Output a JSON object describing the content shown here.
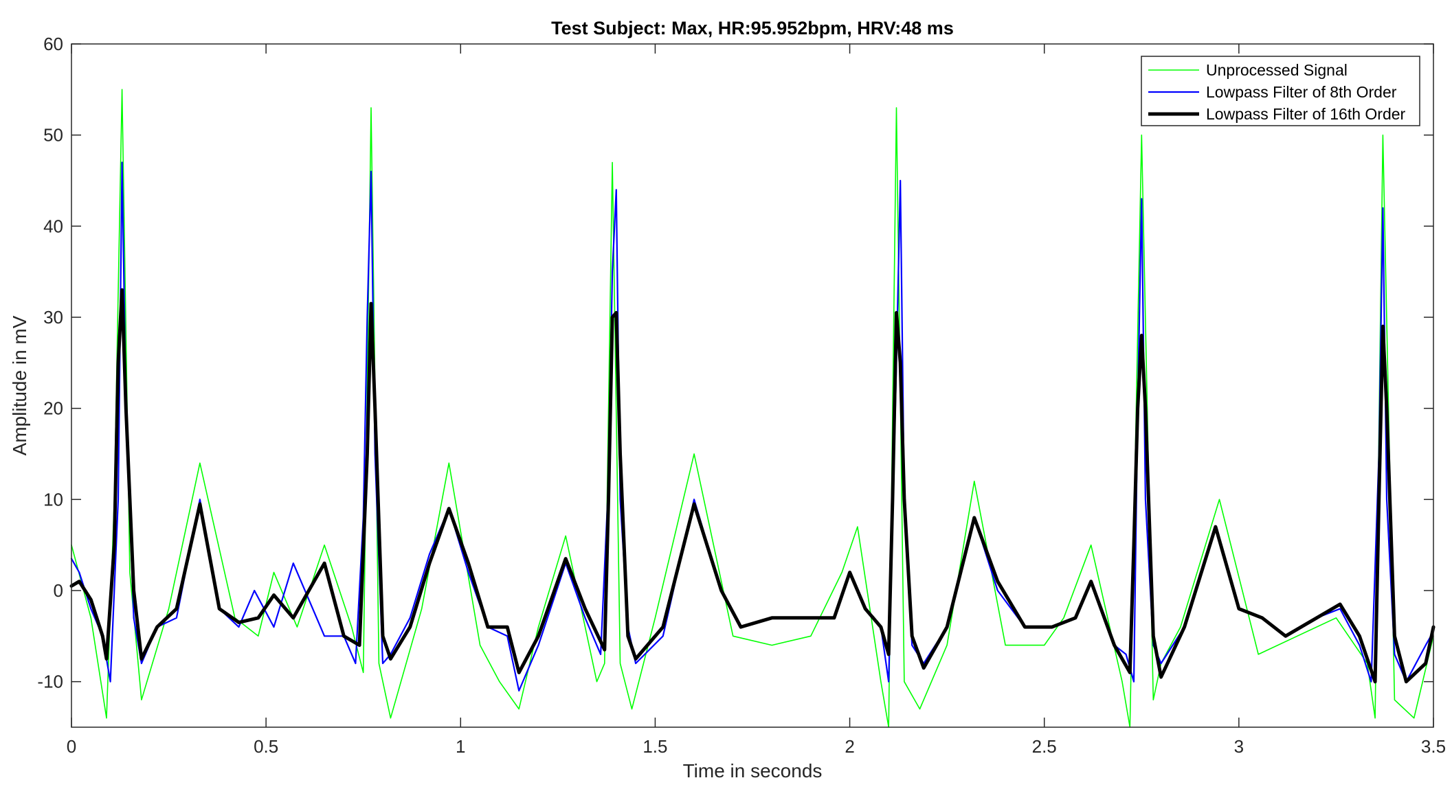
{
  "chart_data": {
    "type": "line",
    "title": "Test Subject: Max, HR:95.952bpm, HRV:48 ms",
    "xlabel": "Time in seconds",
    "ylabel": "Amplitude in mV",
    "xlim": [
      0,
      3.5
    ],
    "ylim": [
      -15,
      60
    ],
    "x_ticks": [
      0,
      0.5,
      1,
      1.5,
      2,
      2.5,
      3,
      3.5
    ],
    "x_tick_labels": [
      "0",
      "0.5",
      "1",
      "1.5",
      "2",
      "2.5",
      "3",
      "3.5"
    ],
    "y_ticks": [
      -10,
      0,
      10,
      20,
      30,
      40,
      50,
      60
    ],
    "y_tick_labels": [
      "-10",
      "0",
      "10",
      "20",
      "30",
      "40",
      "50",
      "60"
    ],
    "grid": false,
    "legend_position": "top-right",
    "series": [
      {
        "name": "Unprocessed Signal",
        "color": "#00ff00",
        "x": [
          0.0,
          0.05,
          0.09,
          0.11,
          0.13,
          0.15,
          0.18,
          0.25,
          0.33,
          0.42,
          0.48,
          0.52,
          0.58,
          0.65,
          0.72,
          0.75,
          0.77,
          0.79,
          0.82,
          0.9,
          0.97,
          1.05,
          1.1,
          1.15,
          1.2,
          1.27,
          1.35,
          1.37,
          1.39,
          1.41,
          1.44,
          1.5,
          1.6,
          1.7,
          1.8,
          1.9,
          1.98,
          2.02,
          2.08,
          2.1,
          2.12,
          2.14,
          2.18,
          2.25,
          2.32,
          2.4,
          2.5,
          2.55,
          2.62,
          2.7,
          2.72,
          2.75,
          2.78,
          2.8,
          2.85,
          2.95,
          3.05,
          3.15,
          3.25,
          3.33,
          3.35,
          3.37,
          3.4,
          3.45,
          3.5
        ],
        "y": [
          5,
          -3,
          -14,
          10,
          55,
          2,
          -12,
          -2,
          14,
          -3,
          -5,
          2,
          -4,
          5,
          -4,
          -9,
          53,
          -8,
          -14,
          -2,
          14,
          -6,
          -10,
          -13,
          -4,
          6,
          -10,
          -8,
          47,
          -8,
          -13,
          -3,
          15,
          -5,
          -6,
          -5,
          2,
          7,
          -10,
          -15,
          53,
          -10,
          -13,
          -6,
          12,
          -6,
          -6,
          -3,
          5,
          -10,
          -15,
          50,
          -12,
          -8,
          -4,
          10,
          -7,
          -5,
          -3,
          -8,
          -14,
          50,
          -12,
          -14,
          -5
        ]
      },
      {
        "name": "Lowpass Filter of 8th Order",
        "color": "#0000ff",
        "x": [
          0.0,
          0.02,
          0.05,
          0.08,
          0.1,
          0.12,
          0.13,
          0.14,
          0.16,
          0.18,
          0.22,
          0.27,
          0.33,
          0.38,
          0.43,
          0.47,
          0.52,
          0.57,
          0.65,
          0.7,
          0.73,
          0.75,
          0.76,
          0.77,
          0.78,
          0.8,
          0.82,
          0.87,
          0.92,
          0.97,
          1.02,
          1.07,
          1.12,
          1.15,
          1.2,
          1.27,
          1.32,
          1.36,
          1.38,
          1.39,
          1.4,
          1.41,
          1.43,
          1.45,
          1.52,
          1.6,
          1.67,
          1.72,
          1.8,
          1.88,
          1.96,
          2.0,
          2.04,
          2.08,
          2.1,
          2.12,
          2.13,
          2.14,
          2.16,
          2.19,
          2.25,
          2.32,
          2.38,
          2.45,
          2.52,
          2.58,
          2.62,
          2.68,
          2.71,
          2.73,
          2.74,
          2.75,
          2.76,
          2.78,
          2.8,
          2.86,
          2.94,
          3.0,
          3.06,
          3.12,
          3.2,
          3.26,
          3.31,
          3.34,
          3.36,
          3.37,
          3.38,
          3.4,
          3.43,
          3.48,
          3.5
        ],
        "y": [
          3.5,
          2,
          -2,
          -5,
          -10,
          10,
          47,
          20,
          -3,
          -8,
          -4,
          -3,
          10,
          -2,
          -4,
          0,
          -4,
          3,
          -5,
          -5,
          -8,
          8,
          30,
          46,
          15,
          -8,
          -7,
          -3,
          4,
          9,
          2,
          -4,
          -5,
          -11,
          -6,
          3,
          -3,
          -7,
          12,
          35,
          44,
          10,
          -4,
          -8,
          -5,
          10,
          0,
          -4,
          -3,
          -3,
          -3,
          2,
          -2,
          -4,
          -10,
          25,
          45,
          10,
          -6,
          -8,
          -4,
          8,
          0,
          -4,
          -4,
          -3,
          1,
          -6,
          -7,
          -10,
          20,
          43,
          10,
          -6,
          -8,
          -4,
          7,
          -2,
          -3,
          -5,
          -3,
          -2,
          -6,
          -10,
          15,
          42,
          10,
          -7,
          -10,
          -6,
          -4.5
        ]
      },
      {
        "name": "Lowpass Filter of 16th Order",
        "color": "#000000",
        "x": [
          0.0,
          0.02,
          0.05,
          0.08,
          0.09,
          0.11,
          0.12,
          0.13,
          0.14,
          0.16,
          0.18,
          0.22,
          0.27,
          0.33,
          0.38,
          0.43,
          0.48,
          0.52,
          0.57,
          0.65,
          0.7,
          0.74,
          0.76,
          0.77,
          0.78,
          0.8,
          0.82,
          0.87,
          0.92,
          0.97,
          1.02,
          1.07,
          1.12,
          1.15,
          1.2,
          1.27,
          1.32,
          1.37,
          1.38,
          1.39,
          1.4,
          1.41,
          1.43,
          1.45,
          1.52,
          1.6,
          1.67,
          1.72,
          1.8,
          1.88,
          1.96,
          2.0,
          2.04,
          2.08,
          2.1,
          2.11,
          2.12,
          2.13,
          2.14,
          2.16,
          2.19,
          2.25,
          2.32,
          2.38,
          2.45,
          2.52,
          2.58,
          2.62,
          2.68,
          2.72,
          2.73,
          2.74,
          2.75,
          2.76,
          2.78,
          2.8,
          2.86,
          2.94,
          3.0,
          3.06,
          3.12,
          3.2,
          3.26,
          3.31,
          3.35,
          3.36,
          3.37,
          3.38,
          3.4,
          3.43,
          3.48,
          3.5
        ],
        "y": [
          0.5,
          1,
          -1,
          -5,
          -7.5,
          5,
          25,
          33,
          20,
          0,
          -7.5,
          -4,
          -2,
          9.5,
          -2,
          -3.5,
          -3,
          -0.5,
          -3,
          3,
          -5,
          -6,
          15,
          31.5,
          20,
          -5,
          -7.5,
          -4,
          3,
          9,
          3,
          -4,
          -4,
          -9,
          -5,
          3.5,
          -2,
          -6.5,
          10,
          30,
          30.5,
          15,
          -5,
          -7.5,
          -4,
          9.5,
          0,
          -4,
          -3,
          -3,
          -3,
          2,
          -2,
          -4,
          -7,
          10,
          30.5,
          25,
          10,
          -5,
          -8.5,
          -4,
          8,
          1,
          -4,
          -4,
          -3,
          1,
          -6,
          -9,
          5,
          20,
          28,
          20,
          -5,
          -9.5,
          -4,
          7,
          -2,
          -3,
          -5,
          -3,
          -1.5,
          -5,
          -10,
          10,
          29,
          20,
          -5,
          -10,
          -8,
          -4
        ]
      }
    ]
  }
}
